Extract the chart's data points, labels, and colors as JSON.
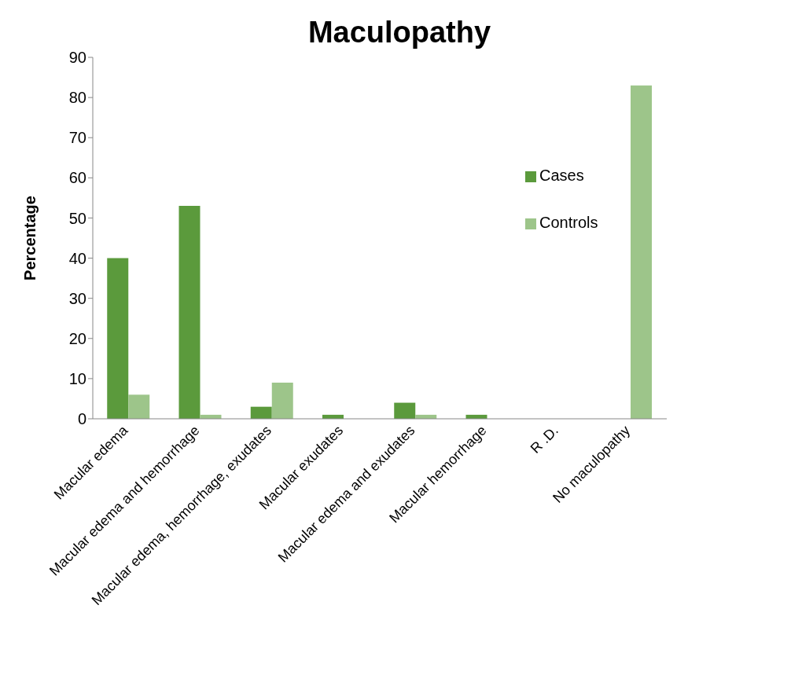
{
  "chart_data": {
    "type": "bar",
    "title": "Maculopathy",
    "ylabel": "Percentage",
    "categories": [
      "Macular edema",
      "Macular edema and hemorrhage",
      "Macular edema, hemorrhage, exudates",
      "Macular exudates",
      "Macular edema and exudates",
      "Macular hemorrhage",
      "R .D.",
      "No maculopathy"
    ],
    "series": [
      {
        "name": "Cases",
        "color": "#5b9a3c",
        "values": [
          40,
          53,
          3,
          1,
          4,
          1,
          0,
          0
        ]
      },
      {
        "name": "Controls",
        "color": "#9dc58a",
        "values": [
          6,
          1,
          9,
          0,
          1,
          0,
          0,
          83
        ]
      }
    ],
    "ylim": [
      0,
      90
    ],
    "yticks": [
      0,
      10,
      20,
      30,
      40,
      50,
      60,
      70,
      80,
      90
    ],
    "grid": false,
    "legend": "top right"
  }
}
